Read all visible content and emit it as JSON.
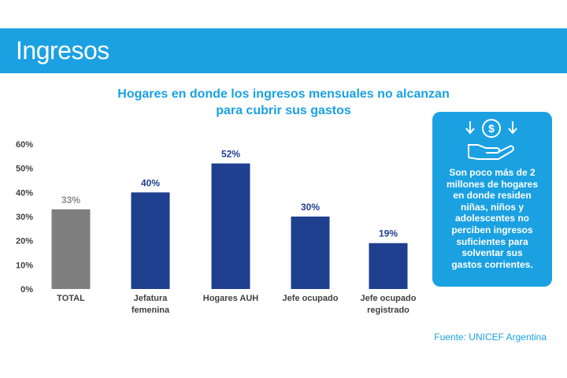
{
  "header": {
    "title": "Ingresos"
  },
  "chart_data": {
    "type": "bar",
    "title_lines": [
      "Hogares en donde los ingresos mensuales no alcanzan",
      "para cubrir sus gastos"
    ],
    "categories": [
      "TOTAL",
      "Jefatura femenina",
      "Hogares AUH",
      "Jefe ocupado",
      "Jefe ocupado registrado"
    ],
    "category_label_lines": [
      [
        "TOTAL"
      ],
      [
        "Jefatura",
        "femenina"
      ],
      [
        "Hogares AUH"
      ],
      [
        "Jefe ocupado"
      ],
      [
        "Jefe ocupado",
        "registrado"
      ]
    ],
    "values": [
      33,
      40,
      52,
      30,
      19
    ],
    "data_labels": [
      "33%",
      "40%",
      "52%",
      "30%",
      "19%"
    ],
    "bar_colors": [
      "#7f7f7f",
      "#1f3f8f",
      "#1f3f8f",
      "#1f3f8f",
      "#1f3f8f"
    ],
    "label_colors": [
      "#8c8c8c",
      "#1f3f8f",
      "#1f3f8f",
      "#1f3f8f",
      "#1f3f8f"
    ],
    "ylim": [
      0,
      60
    ],
    "yticks": [
      0,
      10,
      20,
      30,
      40,
      50,
      60
    ],
    "ytick_labels": [
      "0%",
      "10%",
      "20%",
      "30%",
      "40%",
      "50%",
      "60%"
    ],
    "grid": false
  },
  "callout": {
    "icon": "hand-with-money-icon",
    "lines": [
      "Son poco más de 2",
      "millones de hogares",
      "en donde residen",
      "niñas, niños y",
      "adolescentes no",
      "perciben ingresos",
      "suficientes para",
      "solventar sus",
      "gastos corrientes."
    ]
  },
  "source": "Fuente: UNICEF Argentina",
  "colors": {
    "accent": "#1ba1e2",
    "bar_primary": "#1f3f8f",
    "bar_total": "#7f7f7f"
  }
}
